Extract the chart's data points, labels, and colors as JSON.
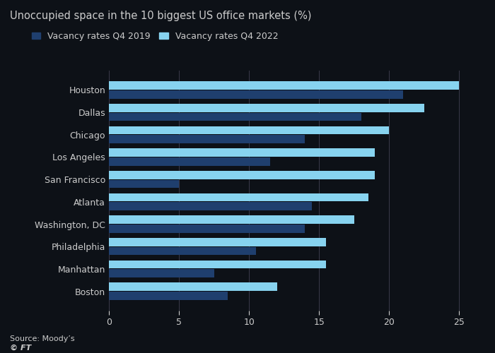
{
  "title": "Unoccupied space in the 10 biggest US office markets (%)",
  "categories": [
    "Houston",
    "Dallas",
    "Chicago",
    "Los Angeles",
    "San Francisco",
    "Atlanta",
    "Washington, DC",
    "Philadelphia",
    "Manhattan",
    "Boston"
  ],
  "q4_2019": [
    21,
    18,
    14,
    11.5,
    5,
    14.5,
    14,
    10.5,
    7.5,
    8.5
  ],
  "q4_2022": [
    25,
    22.5,
    20,
    19,
    19,
    18.5,
    17.5,
    15.5,
    15.5,
    12
  ],
  "color_2019": "#1f3f6e",
  "color_2022": "#87d3ef",
  "xlim": [
    0,
    26.5
  ],
  "xticks": [
    0,
    5,
    10,
    15,
    20,
    25
  ],
  "legend_2019": "Vacancy rates Q4 2019",
  "legend_2022": "Vacancy rates Q4 2022",
  "source": "Source: Moody’s",
  "footer": "© FT",
  "background_color": "#0d1117",
  "grid_color": "#3a3a4a",
  "text_color": "#cccccc",
  "title_fontsize": 10.5,
  "label_fontsize": 9,
  "tick_fontsize": 9
}
